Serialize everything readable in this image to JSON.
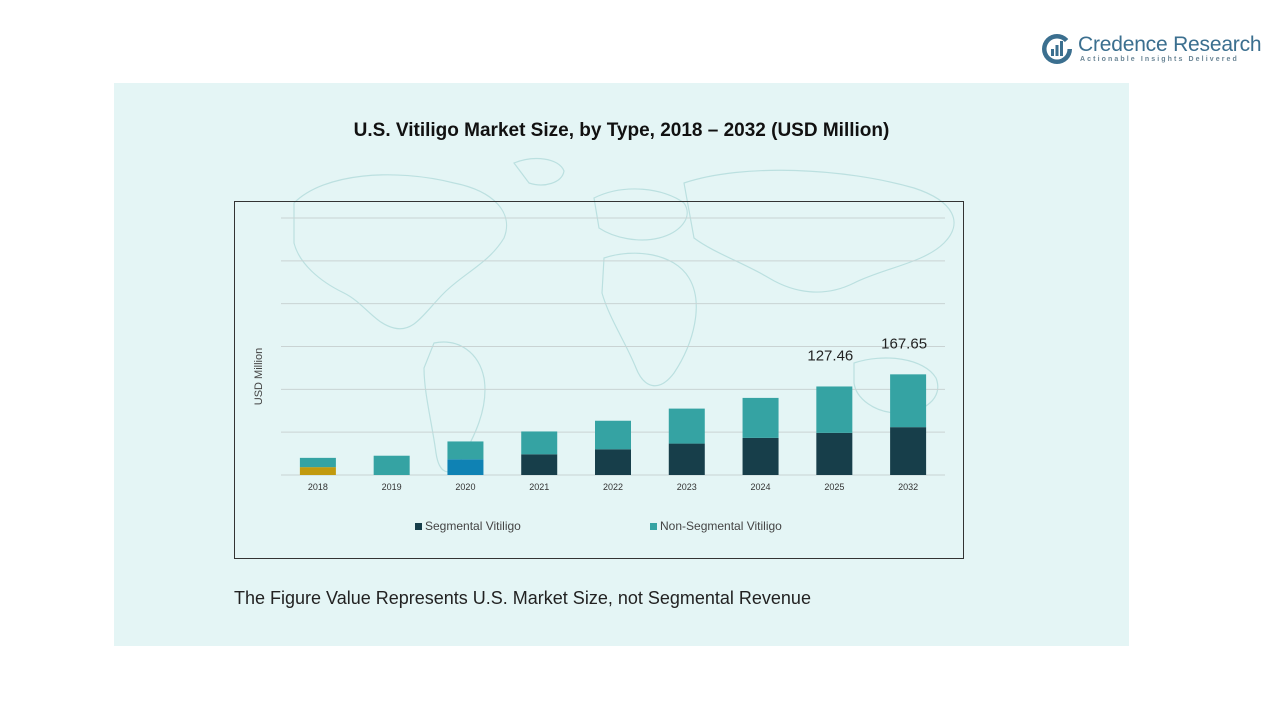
{
  "brand": {
    "name": "Credence Research",
    "tagline": "Actionable Insights Delivered",
    "color": "#3b6f8f"
  },
  "footnote": "The Figure Value Represents U.S. Market Size, not Segmental Revenue",
  "chart_data": {
    "type": "bar",
    "stacked": true,
    "title": "U.S. Vitiligo Market Size, by Type, 2018 – 2032 (USD Million)",
    "ylabel": "USD Million",
    "xlabel": "",
    "ylim": [
      0,
      180
    ],
    "grid": true,
    "legend_position": "bottom",
    "categories": [
      "2018",
      "2019",
      "2020",
      "2021",
      "2022",
      "2023",
      "2024",
      "2025",
      "2032"
    ],
    "series": [
      {
        "name": "Segmental Vitiligo",
        "color": "#173e4a",
        "values": [
          null,
          null,
          null,
          14.5,
          18,
          22,
          26,
          29.5,
          33.5
        ]
      },
      {
        "name": "Non-Segmental Vitiligo",
        "color": "#35a3a3",
        "values": [
          null,
          null,
          null,
          16,
          20,
          24.5,
          28,
          32.5,
          37
        ]
      }
    ],
    "special_bars": [
      {
        "category": "2018",
        "segmental": 5.5,
        "segmental_color": "#c19a0e",
        "non_segmental": 6.5
      },
      {
        "category": "2019",
        "segmental": 0,
        "non_segmental": 13.5
      },
      {
        "category": "2020",
        "segmental": 11,
        "segmental_color": "#0f82b4",
        "non_segmental": 12.5
      }
    ],
    "data_labels": [
      {
        "category": "2025",
        "text": "127.46"
      },
      {
        "category": "2032",
        "text": "167.65"
      }
    ]
  }
}
